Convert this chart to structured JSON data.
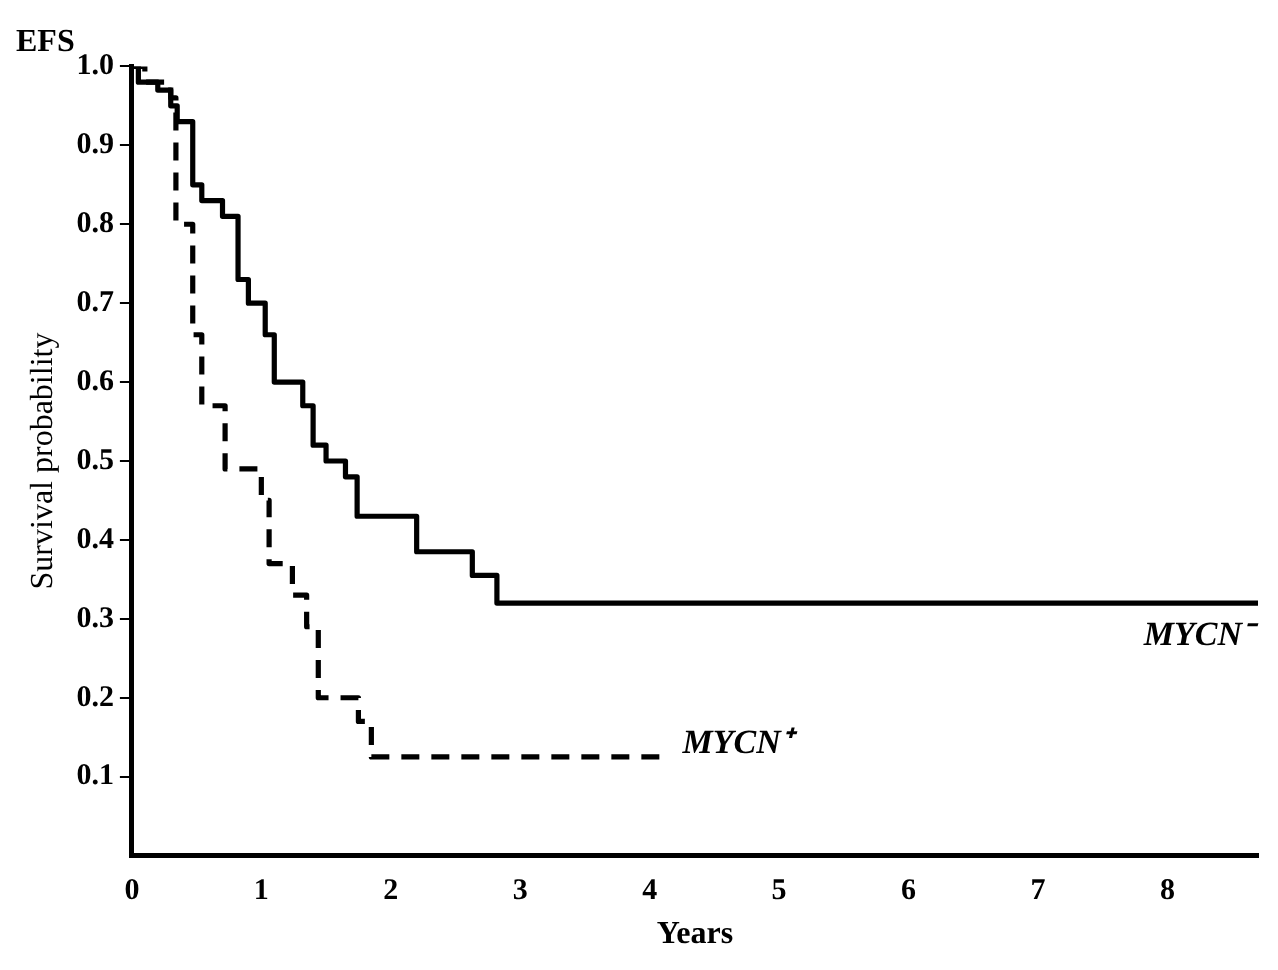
{
  "chart_data": {
    "type": "step",
    "title": "EFS",
    "xlabel": "Years",
    "ylabel": "Survival probability",
    "xlim": [
      0,
      8.7
    ],
    "xticks": [
      0,
      1,
      2,
      3,
      4,
      5,
      6,
      7,
      8
    ],
    "ylim": [
      0,
      1.0
    ],
    "yticks": [
      0.1,
      0.2,
      0.3,
      0.4,
      0.5,
      0.6,
      0.7,
      0.8,
      0.9,
      {
        "value": 1.0,
        "label": "1.0"
      }
    ],
    "grid": false,
    "legend": false,
    "marker": "none",
    "series": [
      {
        "name": "MYCN⁻",
        "color": "#000000",
        "line_style": "solid",
        "x": [
          0,
          0.05,
          0.2,
          0.3,
          0.35,
          0.47,
          0.54,
          0.7,
          0.82,
          0.9,
          1.03,
          1.1,
          1.32,
          1.4,
          1.5,
          1.65,
          1.74,
          2.2,
          2.63,
          2.82,
          8.7
        ],
        "values": [
          1.0,
          0.98,
          0.97,
          0.95,
          0.93,
          0.85,
          0.83,
          0.81,
          0.73,
          0.7,
          0.66,
          0.6,
          0.57,
          0.52,
          0.5,
          0.48,
          0.43,
          0.385,
          0.355,
          0.32,
          0.32
        ]
      },
      {
        "name": "MYCN⁺",
        "color": "#000000",
        "line_style": "dashed",
        "x": [
          0,
          0.1,
          0.3,
          0.34,
          0.47,
          0.54,
          0.72,
          1.0,
          1.06,
          1.24,
          1.35,
          1.44,
          1.75,
          1.85,
          4.1
        ],
        "values": [
          1.0,
          0.98,
          0.96,
          0.8,
          0.66,
          0.57,
          0.49,
          0.45,
          0.37,
          0.33,
          0.29,
          0.2,
          0.17,
          0.125,
          0.125
        ]
      }
    ]
  }
}
